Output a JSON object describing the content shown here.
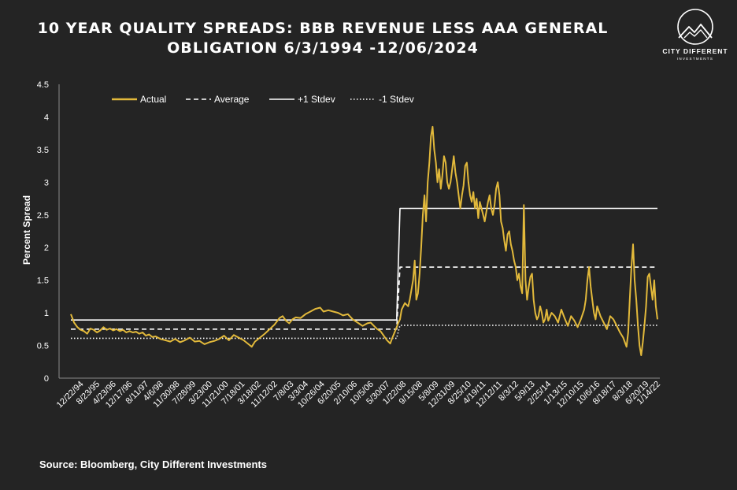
{
  "title_line1": "10 YEAR QUALITY SPREADS: BBB REVENUE LESS AAA GENERAL",
  "title_line2": "OBLIGATION 6/3/1994 -12/06/2024",
  "logo": {
    "name": "CITY DIFFERENT",
    "sub": "INVESTMENTS"
  },
  "source": "Source: Bloomberg, City Different Investments",
  "colors": {
    "actual": "#e2b93b",
    "background": "#242424",
    "text": "#ffffff"
  },
  "chart_data": {
    "type": "line",
    "title": "10 YEAR QUALITY SPREADS: BBB REVENUE LESS AAA GENERAL OBLIGATION 6/3/1994 -12/06/2024",
    "ylabel": "Percent Spread",
    "xlabel": "",
    "ylim": [
      0,
      4.5
    ],
    "yticks": [
      "0",
      "0.5",
      "1",
      "1.5",
      "2",
      "2.5",
      "3",
      "3.5",
      "4",
      "4.5"
    ],
    "xlim": [
      0,
      360
    ],
    "grid": false,
    "legend_position": "top-left",
    "xtick_labels": [
      "12/22/94",
      "8/23/95",
      "4/23/96",
      "12/17/96",
      "8/11/97",
      "4/6/98",
      "11/30/98",
      "7/28/99",
      "3/23/00",
      "11/21/00",
      "7/18/01",
      "3/18/02",
      "11/12/02",
      "7/8/03",
      "3/3/04",
      "10/26/04",
      "6/20/05",
      "2/10/06",
      "10/5/06",
      "5/30/07",
      "1/22/08",
      "9/15/08",
      "5/8/09",
      "12/31/09",
      "8/25/10",
      "4/19/11",
      "12/12/11",
      "8/3/12",
      "5/9/13",
      "2/25/14",
      "1/13/15",
      "12/10/15",
      "10/6/16",
      "8/18/17",
      "8/3/18",
      "6/20/19",
      "1/14/22"
    ],
    "xtick_positions": [
      6,
      16,
      26,
      36,
      46,
      55,
      65,
      75,
      85,
      95,
      105,
      115,
      125,
      135,
      144,
      154,
      164,
      174,
      184,
      194,
      204,
      214,
      224,
      234,
      244,
      253,
      263,
      273,
      283,
      293,
      303,
      313,
      323,
      333,
      343,
      353,
      360
    ],
    "series": [
      {
        "name": "Actual",
        "style": "solid",
        "color": "#e2b93b",
        "points": [
          [
            0,
            0.98
          ],
          [
            2,
            0.85
          ],
          [
            4,
            0.78
          ],
          [
            6,
            0.74
          ],
          [
            8,
            0.72
          ],
          [
            10,
            0.68
          ],
          [
            12,
            0.76
          ],
          [
            14,
            0.74
          ],
          [
            16,
            0.7
          ],
          [
            18,
            0.73
          ],
          [
            20,
            0.78
          ],
          [
            22,
            0.74
          ],
          [
            24,
            0.76
          ],
          [
            26,
            0.73
          ],
          [
            28,
            0.75
          ],
          [
            30,
            0.72
          ],
          [
            32,
            0.74
          ],
          [
            34,
            0.7
          ],
          [
            36,
            0.72
          ],
          [
            38,
            0.7
          ],
          [
            40,
            0.71
          ],
          [
            42,
            0.68
          ],
          [
            44,
            0.7
          ],
          [
            46,
            0.65
          ],
          [
            48,
            0.67
          ],
          [
            50,
            0.63
          ],
          [
            52,
            0.64
          ],
          [
            55,
            0.6
          ],
          [
            58,
            0.58
          ],
          [
            61,
            0.56
          ],
          [
            64,
            0.6
          ],
          [
            67,
            0.55
          ],
          [
            70,
            0.58
          ],
          [
            73,
            0.62
          ],
          [
            76,
            0.56
          ],
          [
            79,
            0.57
          ],
          [
            82,
            0.52
          ],
          [
            85,
            0.55
          ],
          [
            88,
            0.57
          ],
          [
            91,
            0.6
          ],
          [
            94,
            0.65
          ],
          [
            97,
            0.58
          ],
          [
            100,
            0.66
          ],
          [
            103,
            0.62
          ],
          [
            106,
            0.58
          ],
          [
            109,
            0.52
          ],
          [
            111,
            0.48
          ],
          [
            113,
            0.56
          ],
          [
            116,
            0.62
          ],
          [
            119,
            0.68
          ],
          [
            122,
            0.75
          ],
          [
            125,
            0.82
          ],
          [
            128,
            0.92
          ],
          [
            130,
            0.95
          ],
          [
            132,
            0.88
          ],
          [
            134,
            0.84
          ],
          [
            136,
            0.9
          ],
          [
            138,
            0.93
          ],
          [
            141,
            0.92
          ],
          [
            144,
            0.98
          ],
          [
            147,
            1.02
          ],
          [
            150,
            1.06
          ],
          [
            153,
            1.08
          ],
          [
            155,
            1.02
          ],
          [
            158,
            1.04
          ],
          [
            161,
            1.02
          ],
          [
            164,
            1.0
          ],
          [
            167,
            0.96
          ],
          [
            170,
            0.98
          ],
          [
            173,
            0.9
          ],
          [
            176,
            0.85
          ],
          [
            179,
            0.8
          ],
          [
            182,
            0.84
          ],
          [
            184,
            0.85
          ],
          [
            186,
            0.8
          ],
          [
            188,
            0.75
          ],
          [
            190,
            0.72
          ],
          [
            192,
            0.65
          ],
          [
            194,
            0.58
          ],
          [
            196,
            0.53
          ],
          [
            197,
            0.6
          ],
          [
            199,
            0.72
          ],
          [
            201,
            0.85
          ],
          [
            202,
            0.9
          ],
          [
            203,
            1.05
          ],
          [
            205,
            1.15
          ],
          [
            207,
            1.1
          ],
          [
            208,
            1.2
          ],
          [
            210,
            1.5
          ],
          [
            211,
            1.8
          ],
          [
            212,
            1.2
          ],
          [
            213,
            1.3
          ],
          [
            214,
            1.6
          ],
          [
            215,
            2.0
          ],
          [
            216,
            2.5
          ],
          [
            217,
            2.8
          ],
          [
            218,
            2.4
          ],
          [
            219,
            3.0
          ],
          [
            220,
            3.3
          ],
          [
            221,
            3.7
          ],
          [
            222,
            3.85
          ],
          [
            223,
            3.5
          ],
          [
            224,
            3.3
          ],
          [
            225,
            3.0
          ],
          [
            226,
            3.2
          ],
          [
            227,
            2.9
          ],
          [
            228,
            3.1
          ],
          [
            229,
            3.4
          ],
          [
            230,
            3.3
          ],
          [
            231,
            3.0
          ],
          [
            232,
            2.9
          ],
          [
            233,
            3.0
          ],
          [
            234,
            3.2
          ],
          [
            235,
            3.4
          ],
          [
            236,
            3.15
          ],
          [
            237,
            3.0
          ],
          [
            238,
            2.8
          ],
          [
            239,
            2.6
          ],
          [
            240,
            2.8
          ],
          [
            241,
            2.95
          ],
          [
            242,
            3.25
          ],
          [
            243,
            3.3
          ],
          [
            244,
            3.0
          ],
          [
            245,
            2.8
          ],
          [
            246,
            2.7
          ],
          [
            247,
            2.85
          ],
          [
            248,
            2.6
          ],
          [
            249,
            2.75
          ],
          [
            250,
            2.45
          ],
          [
            251,
            2.7
          ],
          [
            252,
            2.6
          ],
          [
            253,
            2.5
          ],
          [
            254,
            2.4
          ],
          [
            255,
            2.55
          ],
          [
            256,
            2.7
          ],
          [
            257,
            2.8
          ],
          [
            258,
            2.6
          ],
          [
            259,
            2.5
          ],
          [
            260,
            2.65
          ],
          [
            261,
            2.9
          ],
          [
            262,
            3.0
          ],
          [
            263,
            2.8
          ],
          [
            264,
            2.4
          ],
          [
            265,
            2.3
          ],
          [
            266,
            2.1
          ],
          [
            267,
            1.95
          ],
          [
            268,
            2.2
          ],
          [
            269,
            2.25
          ],
          [
            270,
            2.05
          ],
          [
            271,
            1.95
          ],
          [
            272,
            1.8
          ],
          [
            273,
            1.7
          ],
          [
            274,
            1.5
          ],
          [
            275,
            1.6
          ],
          [
            276,
            1.4
          ],
          [
            277,
            1.3
          ],
          [
            278,
            2.65
          ],
          [
            279,
            1.5
          ],
          [
            280,
            1.2
          ],
          [
            281,
            1.4
          ],
          [
            282,
            1.55
          ],
          [
            283,
            1.6
          ],
          [
            284,
            1.2
          ],
          [
            285,
            1.0
          ],
          [
            286,
            0.9
          ],
          [
            287,
            0.95
          ],
          [
            288,
            1.1
          ],
          [
            289,
            1.0
          ],
          [
            290,
            0.85
          ],
          [
            291,
            0.9
          ],
          [
            292,
            1.05
          ],
          [
            293,
            0.88
          ],
          [
            295,
            1.0
          ],
          [
            297,
            0.95
          ],
          [
            299,
            0.85
          ],
          [
            301,
            1.05
          ],
          [
            303,
            0.92
          ],
          [
            305,
            0.8
          ],
          [
            307,
            0.95
          ],
          [
            309,
            0.88
          ],
          [
            311,
            0.78
          ],
          [
            313,
            0.9
          ],
          [
            315,
            1.05
          ],
          [
            316,
            1.2
          ],
          [
            317,
            1.5
          ],
          [
            318,
            1.7
          ],
          [
            319,
            1.4
          ],
          [
            320,
            1.2
          ],
          [
            321,
            1.0
          ],
          [
            322,
            0.9
          ],
          [
            323,
            1.1
          ],
          [
            325,
            0.95
          ],
          [
            327,
            0.85
          ],
          [
            329,
            0.75
          ],
          [
            331,
            0.95
          ],
          [
            333,
            0.9
          ],
          [
            335,
            0.8
          ],
          [
            337,
            0.7
          ],
          [
            339,
            0.62
          ],
          [
            340,
            0.55
          ],
          [
            341,
            0.48
          ],
          [
            342,
            0.7
          ],
          [
            343,
            1.2
          ],
          [
            344,
            1.7
          ],
          [
            345,
            2.05
          ],
          [
            346,
            1.5
          ],
          [
            347,
            1.2
          ],
          [
            348,
            0.8
          ],
          [
            349,
            0.5
          ],
          [
            350,
            0.35
          ],
          [
            351,
            0.55
          ],
          [
            352,
            0.8
          ],
          [
            353,
            1.1
          ],
          [
            354,
            1.55
          ],
          [
            355,
            1.6
          ],
          [
            356,
            1.4
          ],
          [
            357,
            1.2
          ],
          [
            358,
            1.5
          ],
          [
            359,
            1.1
          ],
          [
            360,
            0.9
          ]
        ]
      },
      {
        "name": "Average",
        "style": "dashed",
        "color": "#ffffff",
        "points": [
          [
            0,
            0.75
          ],
          [
            200,
            0.75
          ],
          [
            200,
            0.78
          ],
          [
            202,
            1.7
          ],
          [
            360,
            1.7
          ]
        ]
      },
      {
        "name": "+1 Stdev",
        "style": "solid",
        "color": "#ffffff",
        "points": [
          [
            0,
            0.89
          ],
          [
            200,
            0.89
          ],
          [
            200,
            0.95
          ],
          [
            202,
            2.6
          ],
          [
            360,
            2.6
          ]
        ]
      },
      {
        "name": "-1 Stdev",
        "style": "dotted",
        "color": "#ffffff",
        "points": [
          [
            0,
            0.61
          ],
          [
            200,
            0.61
          ],
          [
            200,
            0.62
          ],
          [
            202,
            0.81
          ],
          [
            360,
            0.81
          ]
        ]
      }
    ]
  }
}
